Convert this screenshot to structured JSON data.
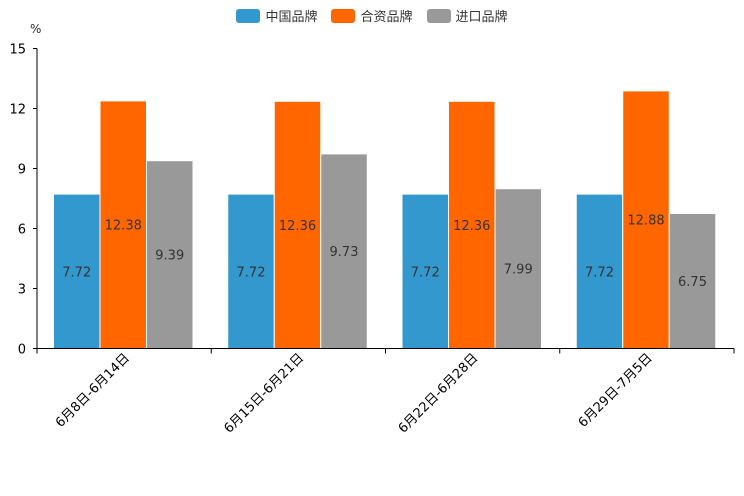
{
  "chart_data": {
    "type": "bar",
    "title": "",
    "ylabel": "%",
    "xlabel": "",
    "ylim": [
      0,
      15
    ],
    "yticks": [
      0,
      3,
      6,
      9,
      12,
      15
    ],
    "categories": [
      "6月8日-6月14日",
      "6月15日-6月21日",
      "6月22日-6月28日",
      "6月29日-7月5日"
    ],
    "series": [
      {
        "name": "中国品牌",
        "color": "#3398ce",
        "values": [
          7.72,
          7.72,
          7.72,
          7.72
        ]
      },
      {
        "name": "合资品牌",
        "color": "#ff6600",
        "values": [
          12.38,
          12.36,
          12.36,
          12.88
        ]
      },
      {
        "name": "进口品牌",
        "color": "#999999",
        "values": [
          9.39,
          9.73,
          7.99,
          6.75
        ]
      }
    ],
    "legend_position": "top-center"
  }
}
